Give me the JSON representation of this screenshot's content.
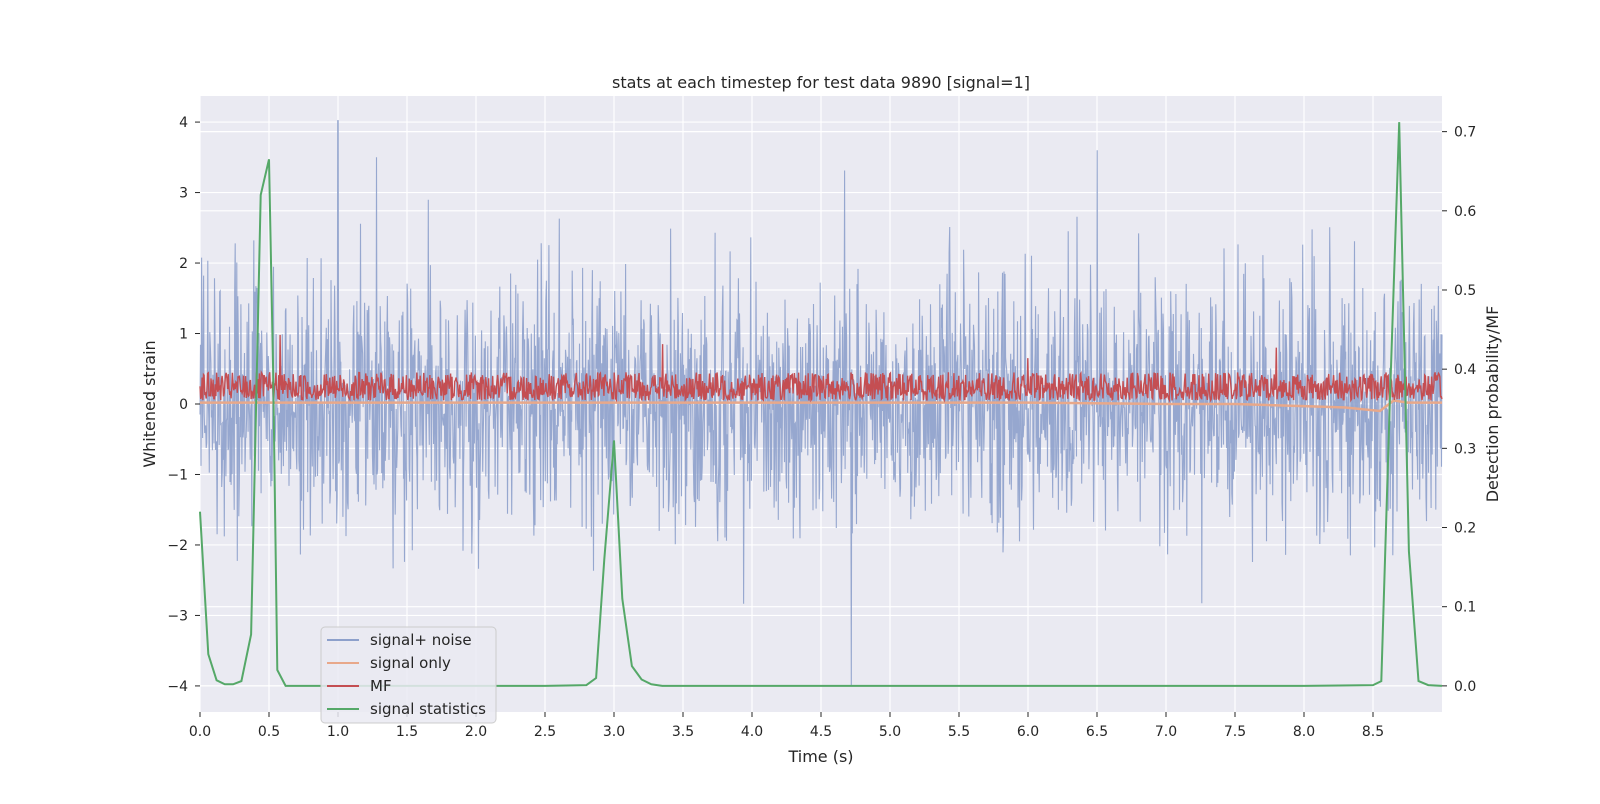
{
  "chart_data": {
    "type": "line",
    "title": "stats at each timestep for test data 9890 [signal=1]",
    "xlabel": "Time (s)",
    "ylabel_left": "Whitened strain",
    "ylabel_right": "Detection probability/MF",
    "xlim": [
      0.0,
      9.0
    ],
    "ylim_left": [
      -4.37,
      4.37
    ],
    "ylim_right": [
      -0.033,
      0.745
    ],
    "x_ticks": [
      0.0,
      0.5,
      1.0,
      1.5,
      2.0,
      2.5,
      3.0,
      3.5,
      4.0,
      4.5,
      5.0,
      5.5,
      6.0,
      6.5,
      7.0,
      7.5,
      8.0,
      8.5
    ],
    "x_tick_labels": [
      "0.0",
      "0.5",
      "1.0",
      "1.5",
      "2.0",
      "2.5",
      "3.0",
      "3.5",
      "4.0",
      "4.5",
      "5.0",
      "5.5",
      "6.0",
      "6.5",
      "7.0",
      "7.5",
      "8.0",
      "8.5"
    ],
    "y_left_ticks": [
      4,
      3,
      2,
      1,
      0,
      -1,
      -2,
      -3,
      -4
    ],
    "y_left_tick_labels": [
      "4",
      "3",
      "2",
      "1",
      "0",
      "−1",
      "−2",
      "−3",
      "−4"
    ],
    "y_right_ticks": [
      0.7,
      0.6,
      0.5,
      0.4,
      0.3,
      0.2,
      0.1,
      0.0
    ],
    "y_right_tick_labels": [
      "0.7",
      "0.6",
      "0.5",
      "0.4",
      "0.3",
      "0.2",
      "0.1",
      "0.0"
    ],
    "grid": true,
    "legend_position": "lower-left",
    "series": [
      {
        "name": "signal+ noise",
        "axis": "left",
        "color": "#8da0cb",
        "style": "dense-noise",
        "band_typical": [
          -1.6,
          1.6
        ],
        "band_extreme": [
          -3.3,
          3.6
        ],
        "notable_peaks": [
          {
            "x": 1.0,
            "y": 4.02
          },
          {
            "x": 4.72,
            "y": -4.0
          },
          {
            "x": 6.5,
            "y": 3.6
          },
          {
            "x": 1.28,
            "y": 3.5
          }
        ]
      },
      {
        "name": "signal only",
        "axis": "left",
        "color": "#e8a88a",
        "style": "chirp",
        "x": [
          0.0,
          1.0,
          2.0,
          3.0,
          4.0,
          5.0,
          6.0,
          7.0,
          7.5,
          8.0,
          8.3,
          8.55,
          8.65,
          8.75,
          9.0
        ],
        "values": [
          0.02,
          0.02,
          0.02,
          0.02,
          0.02,
          0.02,
          0.02,
          0.0,
          0.0,
          -0.03,
          -0.05,
          -0.1,
          0.05,
          0.02,
          0.02
        ]
      },
      {
        "name": "MF",
        "axis": "left",
        "color": "#c44e52",
        "style": "dense-positive",
        "band_typical": [
          0.05,
          0.45
        ],
        "notable_peaks": [
          {
            "x": 0.58,
            "y": 0.98
          },
          {
            "x": 3.35,
            "y": 0.85
          },
          {
            "x": 7.8,
            "y": 0.8
          },
          {
            "x": 6.0,
            "y": 0.65
          }
        ]
      },
      {
        "name": "signal statistics",
        "axis": "right",
        "color": "#55a868",
        "style": "line",
        "x": [
          0.0,
          0.06,
          0.12,
          0.18,
          0.24,
          0.3,
          0.37,
          0.44,
          0.5,
          0.53,
          0.56,
          0.62,
          0.7,
          1.0,
          1.5,
          2.0,
          2.5,
          2.8,
          2.87,
          2.93,
          3.0,
          3.06,
          3.13,
          3.2,
          3.27,
          3.35,
          3.5,
          4.0,
          5.0,
          6.0,
          7.0,
          8.0,
          8.5,
          8.56,
          8.62,
          8.69,
          8.76,
          8.83,
          8.9,
          9.0
        ],
        "values": [
          0.22,
          0.04,
          0.007,
          0.002,
          0.002,
          0.006,
          0.065,
          0.62,
          0.665,
          0.4,
          0.02,
          0.0,
          0.0,
          0.0,
          0.0,
          0.0,
          0.0,
          0.001,
          0.01,
          0.16,
          0.31,
          0.11,
          0.025,
          0.008,
          0.002,
          0.0,
          0.0,
          0.0,
          0.0,
          0.0,
          0.0,
          0.0,
          0.001,
          0.006,
          0.35,
          0.712,
          0.17,
          0.006,
          0.001,
          0.0
        ]
      }
    ]
  }
}
